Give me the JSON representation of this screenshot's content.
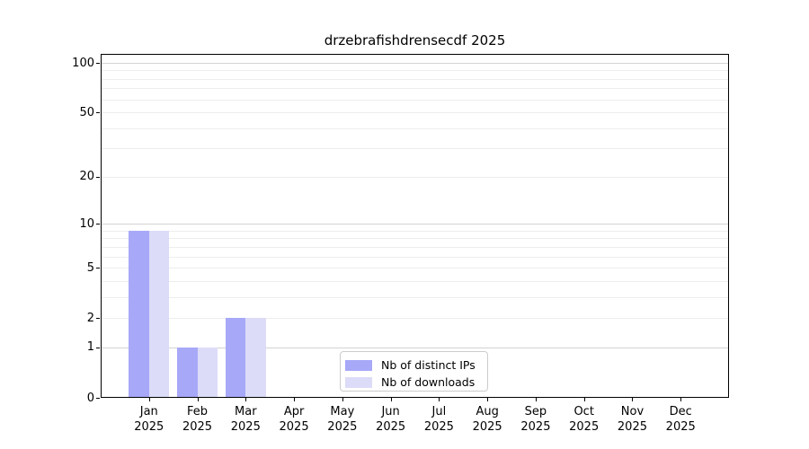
{
  "chart_data": {
    "type": "bar",
    "title": "drzebrafishdrensecdf 2025",
    "x_categories": [
      "Jan",
      "Feb",
      "Mar",
      "Apr",
      "May",
      "Jun",
      "Jul",
      "Aug",
      "Sep",
      "Oct",
      "Nov",
      "Dec"
    ],
    "x_year_label": "2025",
    "series": [
      {
        "name": "Nb of distinct IPs",
        "color": "#a8a8f8",
        "values": [
          9,
          1,
          2,
          0,
          0,
          0,
          0,
          0,
          0,
          0,
          0,
          0
        ]
      },
      {
        "name": "Nb of downloads",
        "color": "#dcdcf8",
        "values": [
          9,
          1,
          2,
          0,
          0,
          0,
          0,
          0,
          0,
          0,
          0,
          0
        ]
      }
    ],
    "y_scale": "log1p",
    "y_ticks": [
      100,
      50,
      20,
      10,
      5,
      2,
      1,
      0
    ],
    "ylim": [
      0,
      113
    ],
    "gridlines": {
      "major": [
        1,
        10,
        100
      ],
      "minor": [
        2,
        3,
        4,
        5,
        6,
        7,
        8,
        9,
        20,
        30,
        40,
        50,
        60,
        70,
        80,
        90
      ]
    },
    "grid": true,
    "legend": {
      "position": "lower center inside",
      "entries": [
        "Nb of distinct IPs",
        "Nb of downloads"
      ]
    }
  },
  "colors": {
    "minor_grid": "#ededed",
    "major_grid": "#d3d3d3",
    "legend_border": "#cccccc",
    "axis": "#000000",
    "background": "#ffffff"
  }
}
